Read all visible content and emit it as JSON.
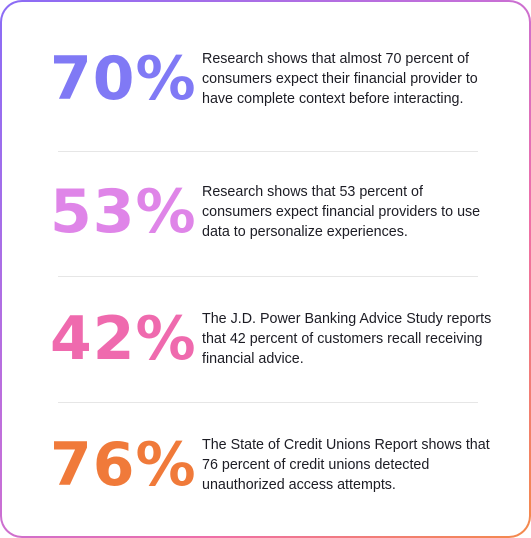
{
  "stats": [
    {
      "value": "70%",
      "color": "#8079f5",
      "text": "Research shows that almost 70 percent of consumers expect their financial provider to have complete context before interacting."
    },
    {
      "value": "53%",
      "color": "#df85e8",
      "text": "Research shows that 53 percent of consumers expect financial providers to use data to personalize experiences."
    },
    {
      "value": "42%",
      "color": "#ef6aae",
      "text": "The J.D. Power Banking Advice Study reports that 42 percent of customers recall receiving financial advice."
    },
    {
      "value": "76%",
      "color": "#f07a3a",
      "text": "The State of Credit Unions Report shows that 76 percent of credit unions detected unauthorized access attempts."
    }
  ]
}
